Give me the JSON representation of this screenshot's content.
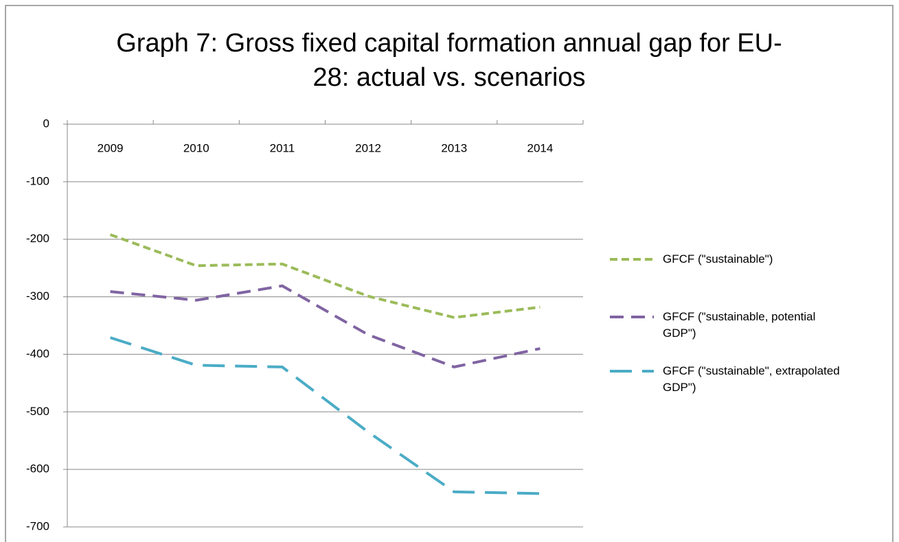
{
  "chart_data": {
    "type": "line",
    "title": "Graph 7: Gross fixed capital formation annual gap for EU-28: actual vs. scenarios",
    "categories": [
      "2009",
      "2010",
      "2011",
      "2012",
      "2013",
      "2014"
    ],
    "series": [
      {
        "name": "GFCF (\"sustainable\")",
        "color": "#9bbb59",
        "values": [
          -192,
          -246,
          -243,
          -299,
          -336,
          -318
        ]
      },
      {
        "name": "GFCF (\"sustainable, potential GDP\")",
        "color": "#8064a2",
        "values": [
          -291,
          -306,
          -281,
          -366,
          -422,
          -390
        ]
      },
      {
        "name": "GFCF (\"sustainable\", extrapolated GDP\")",
        "color": "#4bacc6",
        "values": [
          -371,
          -419,
          -422,
          -535,
          -639,
          -642
        ]
      }
    ],
    "ylim": [
      -700,
      0
    ],
    "yticks": [
      0,
      -100,
      -200,
      -300,
      -400,
      -500,
      -600,
      -700
    ],
    "grid": true,
    "legend": "right"
  }
}
